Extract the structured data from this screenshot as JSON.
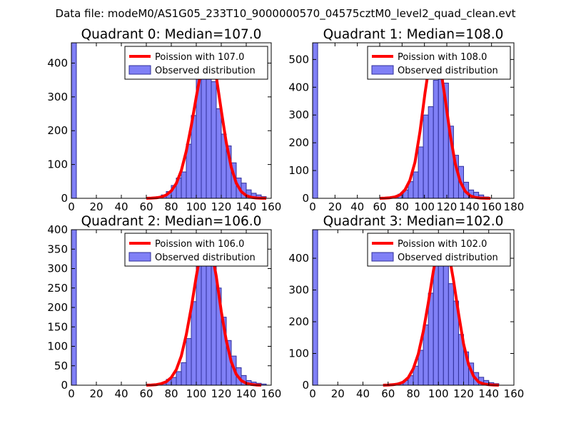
{
  "suptitle": "Data file: modeM0/AS1G05_233T10_9000000570_04575cztM0_level2_quad_clean.evt",
  "colors": {
    "bar_fill": "#8080f6",
    "bar_edge": "#2f2f9a",
    "curve": "#ff0000",
    "axes": "#000000"
  },
  "chart_data": [
    {
      "type": "bar",
      "title": "Quadrant 0: Median=107.0",
      "median": 107.0,
      "xlim": [
        0,
        160
      ],
      "ylim": [
        0,
        460
      ],
      "xticks": [
        "0",
        "20",
        "40",
        "60",
        "80",
        "100",
        "120",
        "140",
        "160"
      ],
      "yticks": [
        "0",
        "100",
        "200",
        "300",
        "400"
      ],
      "legend": {
        "line": "Poission with 107.0",
        "bars": "Observed distribution",
        "loc": "upper right"
      },
      "bin_width": 4,
      "bins": [
        [
          0,
          460
        ],
        [
          68,
          5
        ],
        [
          72,
          10
        ],
        [
          76,
          20
        ],
        [
          80,
          38
        ],
        [
          84,
          60
        ],
        [
          88,
          78
        ],
        [
          92,
          160
        ],
        [
          96,
          245
        ],
        [
          100,
          360
        ],
        [
          104,
          395
        ],
        [
          108,
          395
        ],
        [
          112,
          345
        ],
        [
          116,
          265
        ],
        [
          120,
          190
        ],
        [
          124,
          155
        ],
        [
          128,
          105
        ],
        [
          132,
          60
        ],
        [
          136,
          45
        ],
        [
          140,
          25
        ],
        [
          144,
          15
        ],
        [
          148,
          10
        ],
        [
          152,
          5
        ]
      ],
      "curve": {
        "x": [
          60,
          64,
          68,
          72,
          76,
          80,
          84,
          88,
          92,
          96,
          100,
          104,
          108,
          112,
          116,
          120,
          124,
          128,
          132,
          136,
          140,
          144,
          148,
          152,
          156
        ],
        "y": [
          0,
          0.5,
          1.5,
          4,
          10,
          22,
          44,
          82,
          140,
          215,
          300,
          380,
          440,
          430,
          360,
          260,
          165,
          92,
          45,
          20,
          8,
          3,
          1,
          0.3,
          0
        ]
      }
    },
    {
      "type": "bar",
      "title": "Quadrant 1: Median=108.0",
      "median": 108.0,
      "xlim": [
        0,
        180
      ],
      "ylim": [
        0,
        560
      ],
      "xticks": [
        "0",
        "20",
        "40",
        "60",
        "80",
        "100",
        "120",
        "140",
        "160",
        "180"
      ],
      "yticks": [
        "0",
        "100",
        "200",
        "300",
        "400",
        "500"
      ],
      "legend": {
        "line": "Poission with 108.0",
        "bars": "Observed distribution",
        "loc": "upper right"
      },
      "bin_width": 4.5,
      "bins": [
        [
          0,
          560
        ],
        [
          72,
          5
        ],
        [
          76.5,
          15
        ],
        [
          81,
          30
        ],
        [
          85.5,
          60
        ],
        [
          90,
          95
        ],
        [
          94.5,
          185
        ],
        [
          99,
          300
        ],
        [
          103.5,
          330
        ],
        [
          108,
          425
        ],
        [
          112.5,
          480
        ],
        [
          117,
          415
        ],
        [
          121.5,
          260
        ],
        [
          126,
          155
        ],
        [
          130.5,
          115
        ],
        [
          135,
          58
        ],
        [
          139.5,
          30
        ],
        [
          144,
          22
        ],
        [
          148.5,
          12
        ],
        [
          153,
          5
        ]
      ],
      "curve": {
        "x": [
          60,
          64.5,
          69,
          73.5,
          78,
          82.5,
          87,
          91.5,
          96,
          100.5,
          105,
          109.5,
          114,
          118.5,
          123,
          127.5,
          132,
          136.5,
          141,
          145.5,
          150,
          154.5,
          159
        ],
        "y": [
          0,
          0.5,
          2,
          5,
          12,
          30,
          65,
          130,
          240,
          380,
          500,
          540,
          480,
          360,
          230,
          125,
          60,
          25,
          9,
          3,
          1,
          0.3,
          0
        ]
      }
    },
    {
      "type": "bar",
      "title": "Quadrant 2: Median=106.0",
      "median": 106.0,
      "xlim": [
        0,
        160
      ],
      "ylim": [
        0,
        400
      ],
      "xticks": [
        "0",
        "20",
        "40",
        "60",
        "80",
        "100",
        "120",
        "140",
        "160"
      ],
      "yticks": [
        "0",
        "50",
        "100",
        "150",
        "200",
        "250",
        "300",
        "350",
        "400"
      ],
      "legend": {
        "line": "Poission with 106.0",
        "bars": "Observed distribution",
        "loc": "upper right"
      },
      "bin_width": 4,
      "bins": [
        [
          0,
          400
        ],
        [
          72,
          5
        ],
        [
          76,
          15
        ],
        [
          80,
          20
        ],
        [
          84,
          35
        ],
        [
          88,
          58
        ],
        [
          92,
          120
        ],
        [
          96,
          215
        ],
        [
          100,
          380
        ],
        [
          104,
          390
        ],
        [
          108,
          345
        ],
        [
          112,
          335
        ],
        [
          116,
          250
        ],
        [
          120,
          175
        ],
        [
          124,
          115
        ],
        [
          128,
          75
        ],
        [
          132,
          45
        ],
        [
          136,
          25
        ],
        [
          140,
          12
        ],
        [
          144,
          8
        ],
        [
          148,
          5
        ],
        [
          152,
          3
        ]
      ],
      "curve": {
        "x": [
          60,
          64,
          68,
          72,
          76,
          80,
          84,
          88,
          92,
          96,
          100,
          104,
          108,
          112,
          116,
          120,
          124,
          128,
          132,
          136,
          140,
          144,
          148,
          152
        ],
        "y": [
          0,
          0.5,
          1.5,
          4,
          9,
          20,
          40,
          75,
          130,
          200,
          280,
          350,
          380,
          350,
          280,
          190,
          115,
          60,
          28,
          12,
          5,
          2,
          0.5,
          0
        ]
      }
    },
    {
      "type": "bar",
      "title": "Quadrant 3: Median=102.0",
      "median": 102.0,
      "xlim": [
        0,
        160
      ],
      "ylim": [
        0,
        490
      ],
      "xticks": [
        "0",
        "20",
        "40",
        "60",
        "80",
        "100",
        "120",
        "140",
        "160"
      ],
      "yticks": [
        "0",
        "100",
        "200",
        "300",
        "400"
      ],
      "legend": {
        "line": "Poission with 102.0",
        "bars": "Observed distribution",
        "loc": "upper right"
      },
      "bin_width": 4,
      "bins": [
        [
          0,
          490
        ],
        [
          64,
          5
        ],
        [
          68,
          8
        ],
        [
          72,
          15
        ],
        [
          76,
          30
        ],
        [
          80,
          60
        ],
        [
          84,
          110
        ],
        [
          88,
          190
        ],
        [
          92,
          290
        ],
        [
          96,
          395
        ],
        [
          100,
          460
        ],
        [
          104,
          420
        ],
        [
          108,
          320
        ],
        [
          112,
          265
        ],
        [
          116,
          160
        ],
        [
          120,
          105
        ],
        [
          124,
          70
        ],
        [
          128,
          40
        ],
        [
          132,
          25
        ],
        [
          136,
          15
        ],
        [
          140,
          8
        ],
        [
          144,
          5
        ]
      ],
      "curve": {
        "x": [
          56,
          60,
          64,
          68,
          72,
          76,
          80,
          84,
          88,
          92,
          96,
          100,
          104,
          108,
          112,
          116,
          120,
          124,
          128,
          132,
          136,
          140,
          144,
          148
        ],
        "y": [
          0,
          0.5,
          1.5,
          4,
          10,
          24,
          52,
          98,
          170,
          260,
          360,
          440,
          465,
          420,
          330,
          225,
          130,
          65,
          28,
          10,
          4,
          1.5,
          0.5,
          0
        ]
      }
    }
  ]
}
